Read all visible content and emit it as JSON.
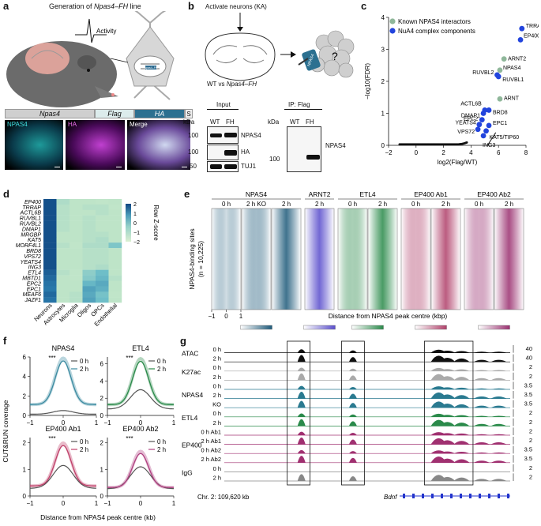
{
  "a": {
    "label": "a",
    "title_prefix": "Generation of ",
    "title_gene": "Npas4–FH",
    "title_suffix": " line",
    "activity": "Activity",
    "cell_label": "Npas4–FH",
    "construct": [
      "Npas4",
      "Flag",
      "HA",
      "S"
    ],
    "micro": [
      "NPAS4",
      "HA",
      "Merge"
    ]
  },
  "b": {
    "label": "b",
    "activate": "Activate neurons (KA)",
    "protein": "NPAS4",
    "question": "?",
    "compare_pre": "WT vs ",
    "compare_gene": "Npas4–FH",
    "input": "Input",
    "ip": "IP: Flag",
    "kda": "kDa",
    "lanes": [
      "WT",
      "FH"
    ],
    "blots": [
      "NPAS4",
      "HA",
      "TUJ1"
    ],
    "mw": [
      "100",
      "100",
      "50"
    ],
    "ip_blot": "NPAS4",
    "ip_mw": "100"
  },
  "c": {
    "label": "c",
    "legend": [
      "Known NPAS4 interactors",
      "NuA4 complex components"
    ],
    "colors": {
      "known": "#8fb79a",
      "nua4": "#2244dd"
    },
    "xlabel": "log2(Flag/WT)",
    "ylabel": "−log10(FDR)",
    "xticks": [
      "−2",
      "0",
      "2",
      "4",
      "6",
      "8"
    ],
    "yticks": [
      "0",
      "1",
      "2",
      "3",
      "4"
    ],
    "points": [
      {
        "name": "TRRAP",
        "x": 7.7,
        "y": 3.65,
        "group": "nua4"
      },
      {
        "name": "EP400",
        "x": 7.6,
        "y": 3.3,
        "group": "nua4"
      },
      {
        "name": "ARNT2",
        "x": 6.4,
        "y": 2.7,
        "group": "known"
      },
      {
        "name": "NPAS4",
        "x": 6.1,
        "y": 2.35,
        "group": "known"
      },
      {
        "name": "RUVBL2",
        "x": 5.9,
        "y": 2.2,
        "group": "nua4"
      },
      {
        "name": "RUVBL1",
        "x": 6.0,
        "y": 2.15,
        "group": "nua4"
      },
      {
        "name": "ARNT",
        "x": 6.1,
        "y": 1.45,
        "group": "known"
      },
      {
        "name": "ACTL6B",
        "x": 5.0,
        "y": 1.1,
        "group": "nua4"
      },
      {
        "name": "BRD8",
        "x": 5.3,
        "y": 1.1,
        "group": "nua4"
      },
      {
        "name": "DMAP1",
        "x": 4.9,
        "y": 1.0,
        "group": "nua4"
      },
      {
        "name": "EPC2",
        "x": 4.8,
        "y": 0.8,
        "group": "nua4"
      },
      {
        "name": "YEATS4",
        "x": 4.6,
        "y": 0.65,
        "group": "nua4"
      },
      {
        "name": "EPC1",
        "x": 5.3,
        "y": 0.62,
        "group": "nua4"
      },
      {
        "name": "VPS72",
        "x": 4.5,
        "y": 0.5,
        "group": "nua4"
      },
      {
        "name": "KAT5/TIP60",
        "x": 5.1,
        "y": 0.45,
        "group": "nua4"
      },
      {
        "name": "ING3",
        "x": 4.9,
        "y": 0.3,
        "group": "nua4"
      }
    ]
  },
  "d": {
    "label": "d",
    "genes": [
      "EP400",
      "TRRAP",
      "ACTL6B",
      "RUVBL1",
      "RUVBL2",
      "DMAP1",
      "MRGBP",
      "KAT5",
      "MORF4L1",
      "BRD8",
      "VPS72",
      "YEATS4",
      "ING3",
      "ETL4",
      "MBTD1",
      "EPC2",
      "EPC1",
      "MEAF6",
      "JAZF1"
    ],
    "cells": [
      "Neurons",
      "Astrocytes",
      "Microglia",
      "Oligos",
      "OPCs",
      "Endothelial"
    ],
    "scale_title": "Row Z-score",
    "scale_ticks": [
      "2",
      "1",
      "0",
      "−1",
      "−2"
    ],
    "matrix": [
      [
        2.3,
        -0.3,
        -0.5,
        -0.5,
        -0.6,
        -0.5
      ],
      [
        2.3,
        -0.4,
        -0.5,
        -0.4,
        -0.4,
        -0.6
      ],
      [
        2.3,
        -0.4,
        -0.5,
        -0.5,
        -0.4,
        -0.5
      ],
      [
        2.3,
        -0.4,
        -0.5,
        -0.4,
        -0.5,
        -0.5
      ],
      [
        2.3,
        -0.4,
        -0.5,
        -0.4,
        -0.5,
        -0.5
      ],
      [
        2.3,
        -0.4,
        -0.5,
        -0.4,
        -0.5,
        -0.5
      ],
      [
        2.3,
        -0.5,
        -0.5,
        -0.4,
        -0.4,
        -0.5
      ],
      [
        2.3,
        -0.5,
        -0.5,
        -0.4,
        -0.3,
        -0.5
      ],
      [
        2.3,
        -0.4,
        -0.6,
        -0.3,
        -0.3,
        0.3
      ],
      [
        2.3,
        -0.5,
        -0.5,
        -0.4,
        -0.4,
        -0.5
      ],
      [
        2.3,
        -0.5,
        -0.5,
        -0.4,
        -0.4,
        -0.5
      ],
      [
        2.3,
        -0.5,
        -0.5,
        -0.4,
        -0.4,
        -0.5
      ],
      [
        2.3,
        -0.5,
        -0.5,
        -0.4,
        -0.3,
        -0.5
      ],
      [
        2.0,
        -0.4,
        -0.6,
        0.1,
        0.5,
        -0.5
      ],
      [
        1.8,
        -0.5,
        -0.6,
        0.2,
        0.6,
        -0.4
      ],
      [
        1.6,
        -0.5,
        -0.5,
        0.6,
        0.8,
        -0.5
      ],
      [
        1.5,
        -0.5,
        -0.5,
        0.9,
        0.7,
        -0.5
      ],
      [
        1.8,
        -0.5,
        -0.4,
        0.8,
        0.4,
        -0.6
      ],
      [
        1.6,
        -0.5,
        -0.4,
        0.9,
        0.5,
        -0.5
      ]
    ]
  },
  "e": {
    "label": "e",
    "ylabel1": "NPAS4-binding sites",
    "ylabel2": "(n = 10,225)",
    "groups": [
      {
        "title": "NPAS4",
        "cols": [
          "0 h",
          "2 h KO",
          "2 h"
        ]
      },
      {
        "title": "ARNT2",
        "cols": [
          "2 h"
        ]
      },
      {
        "title": "ETL4",
        "cols": [
          "0 h",
          "2 h"
        ]
      },
      {
        "title": "EP400 Ab1",
        "cols": [
          "0 h",
          "2 h"
        ]
      },
      {
        "title": "EP400 Ab2",
        "cols": [
          "0 h",
          "2 h"
        ]
      }
    ],
    "xlabel": "Distance from NPAS4 peak centre (kbp)",
    "xticks": [
      "−1",
      "0",
      "1"
    ],
    "scale_ticks": [
      "0",
      "50"
    ],
    "colors": [
      "#1e5a7a",
      "#5a4ecc",
      "#2a8a4a",
      "#b0406a",
      "#9a3070"
    ]
  },
  "f": {
    "label": "f",
    "ylabel": "CUT&RUN coverage",
    "xlabel": "Distance from NPAS4 peak centre (kb)",
    "sig": "***",
    "legend": [
      "0 h",
      "2 h"
    ],
    "panels": [
      {
        "title": "NPAS4",
        "yticks": [
          "0",
          "2",
          "4",
          "6"
        ],
        "ymax": 6,
        "c0": "#555555",
        "c2": "#3a8aa0",
        "peak0": 0.5,
        "peak2": 5.6
      },
      {
        "title": "ETL4",
        "yticks": [
          "0",
          "2",
          "4",
          "6"
        ],
        "ymax": 6.8,
        "c0": "#555555",
        "c2": "#2a8a4a",
        "peak0": 3.0,
        "peak2": 6.3
      },
      {
        "title": "EP400 Ab1",
        "yticks": [
          "0",
          "1",
          "2"
        ],
        "ymax": 2.2,
        "c0": "#555555",
        "c2": "#c0406a",
        "peak0": 1.15,
        "peak2": 1.9
      },
      {
        "title": "EP400 Ab2",
        "yticks": [
          "0",
          "1",
          "2"
        ],
        "ymax": 2.2,
        "c0": "#555555",
        "c2": "#b04080",
        "peak0": 1.1,
        "peak2": 1.6
      }
    ],
    "xticks": [
      "−1",
      "0",
      "1"
    ]
  },
  "g": {
    "label": "g",
    "rows": [
      {
        "group": "ATAC",
        "cond": "0 h",
        "color": "#111111",
        "scale": "40"
      },
      {
        "group": "",
        "cond": "2 h",
        "color": "#111111",
        "scale": "40"
      },
      {
        "group": "K27ac",
        "cond": "0 h",
        "color": "#aaaaaa",
        "scale": "2"
      },
      {
        "group": "",
        "cond": "2 h",
        "color": "#aaaaaa",
        "scale": "2"
      },
      {
        "group": "NPAS4",
        "cond": "0 h",
        "color": "#2a7a90",
        "scale": "3.5"
      },
      {
        "group": "",
        "cond": "2 h",
        "color": "#2a7a90",
        "scale": "3.5"
      },
      {
        "group": "",
        "cond": "KO",
        "color": "#2a7a90",
        "scale": "3.5"
      },
      {
        "group": "ETL4",
        "cond": "0 h",
        "color": "#2a8a4a",
        "scale": "2"
      },
      {
        "group": "",
        "cond": "2 h",
        "color": "#2a8a4a",
        "scale": "2"
      },
      {
        "group": "EP400",
        "cond": "0 h Ab1",
        "color": "#a03070",
        "scale": "2"
      },
      {
        "group": "",
        "cond": "2 h Ab1",
        "color": "#a03070",
        "scale": "2"
      },
      {
        "group": "",
        "cond": "0 h Ab2",
        "color": "#a03070",
        "scale": "3.5"
      },
      {
        "group": "",
        "cond": "2 h Ab2",
        "color": "#a03070",
        "scale": "3.5"
      },
      {
        "group": "IgG",
        "cond": "0 h",
        "color": "#888888",
        "scale": "2"
      },
      {
        "group": "",
        "cond": "2 h",
        "color": "#888888",
        "scale": "2"
      }
    ],
    "coord": "Chr. 2: 109,620 kb",
    "gene": "Bdnf"
  }
}
